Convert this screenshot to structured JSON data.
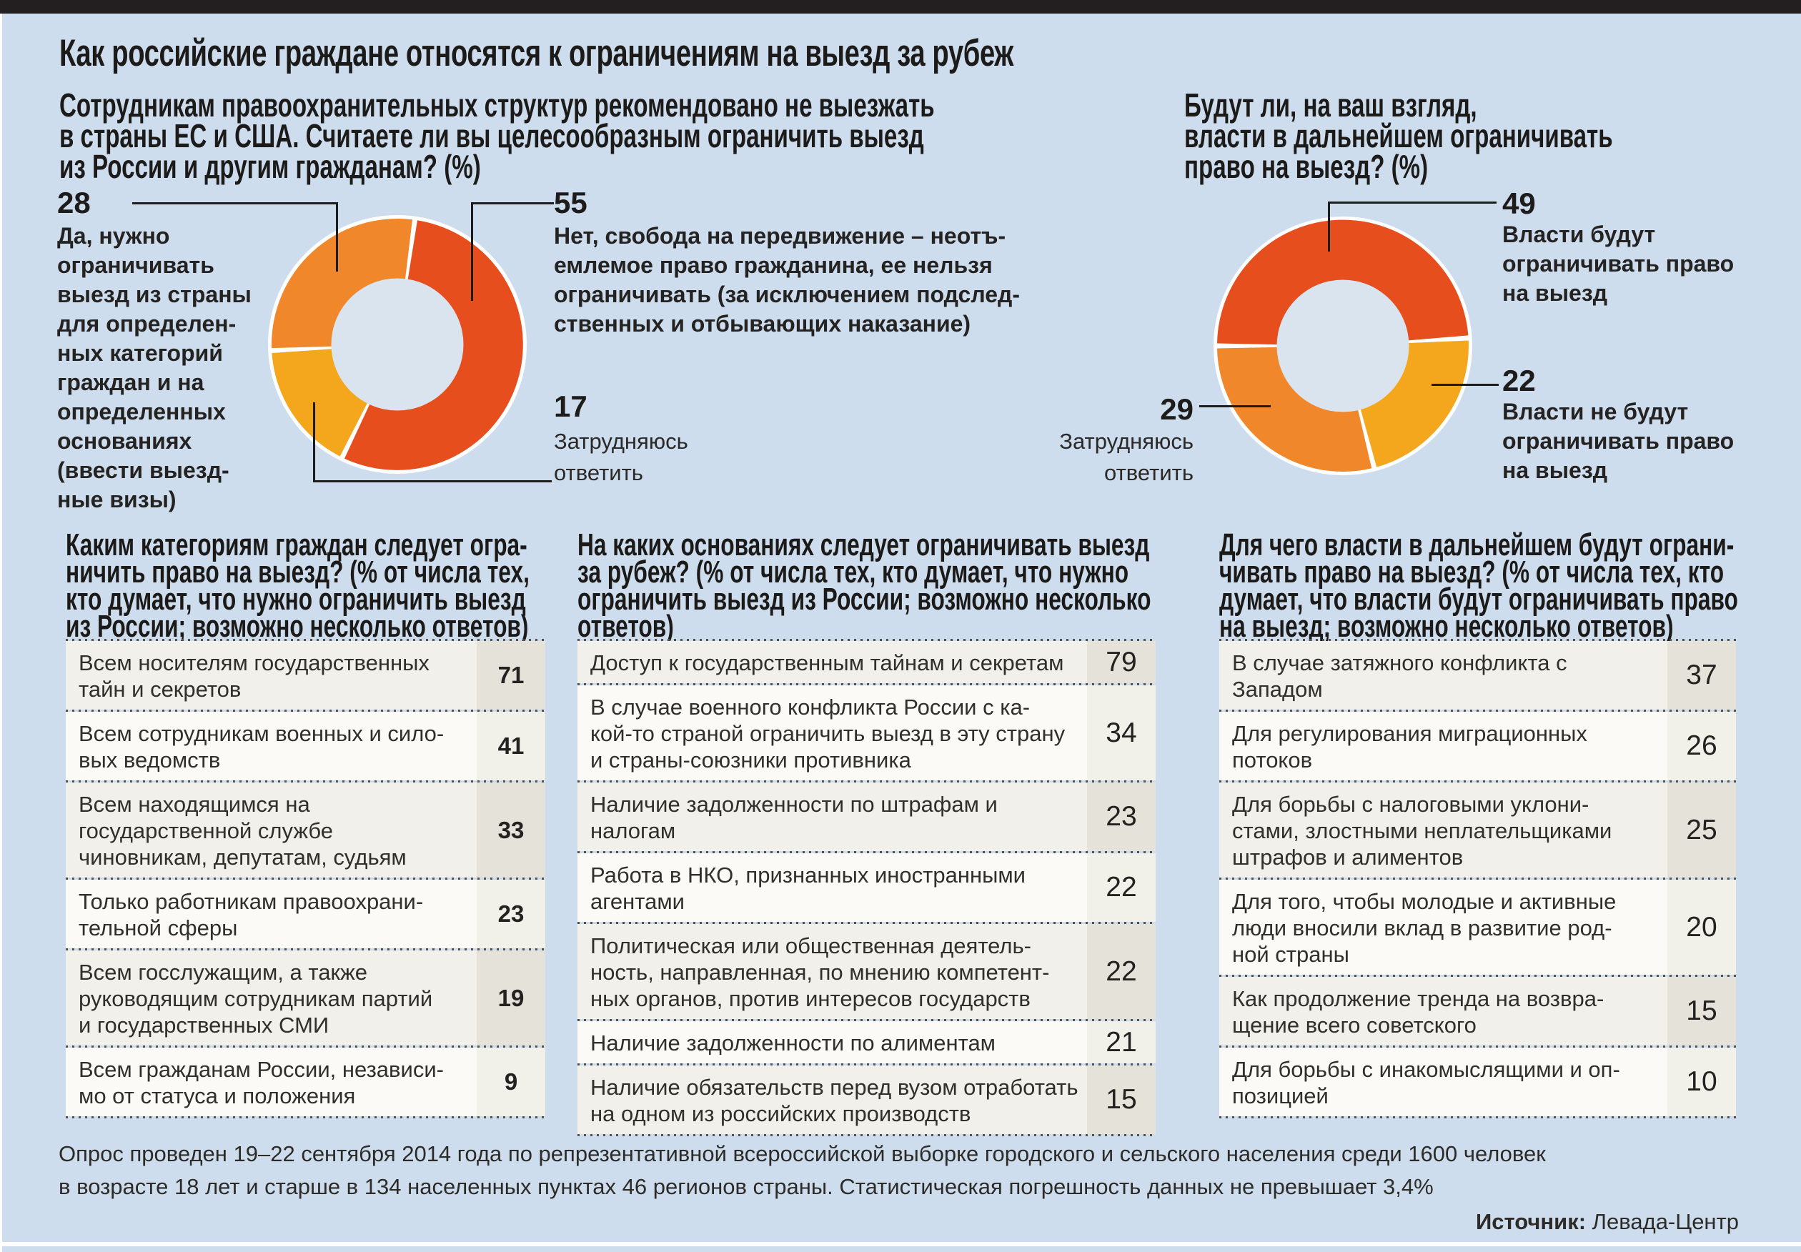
{
  "page": {
    "title": "Как российские граждане относятся к ограничениям на выезд за рубеж",
    "footer": "Опрос проведен 19–22 сентября 2014 года по репрезентативной всероссийской выборке городского и сельского населения среди 1600 человек\nв возрасте 18 лет и старше в 134 населенных пунктах 46 регионов страны. Статистическая погрешность данных не превышает 3,4%",
    "source_label": "Источник:",
    "source_value": " Левада-Центр"
  },
  "questions": {
    "left": "Сотрудникам правоохранительных структур рекомендовано не выезжать\nв страны ЕС и США. Считаете ли вы целесообразным ограничить выезд\nиз России и другим гражданам? (%)",
    "right": "Будут ли, на ваш взгляд,\nвласти в дальнейшем ограничивать\nправо на выезд? (%)"
  },
  "chart_data": [
    {
      "type": "pie",
      "subtype": "donut",
      "title": "Считаете ли вы целесообразным ограничить выезд из России и другим гражданам? (%)",
      "start_angle": 8,
      "segments": [
        {
          "label": "Нет, свобода на передвижение – неотъемлемое право гражданина, ее нельзя ограничивать (за исключением подследственных и отбывающих наказание)",
          "value": 55,
          "color": "#e74e1e"
        },
        {
          "label": "Затрудняюсь ответить",
          "value": 17,
          "color": "#f4a71d"
        },
        {
          "label": "Да, нужно ограничивать выезд из страны для определенных категорий граждан и на определенных основаниях (ввести выездные визы)",
          "value": 28,
          "color": "#f0872a"
        }
      ]
    },
    {
      "type": "pie",
      "subtype": "donut",
      "title": "Будут ли, на ваш взгляд, власти в дальнейшем ограничивать право на выезд? (%)",
      "start_angle": 270,
      "segments": [
        {
          "label": "Власти будут ограничивать право на выезд",
          "value": 49,
          "color": "#e74e1e"
        },
        {
          "label": "Власти не будут ограничивать право на выезд",
          "value": 22,
          "color": "#f4a71d"
        },
        {
          "label": "Затрудняюсь ответить",
          "value": 29,
          "color": "#f0872a"
        }
      ]
    }
  ],
  "callouts": {
    "c28": "Да, нужно\nограничивать\nвыезд из страны\nдля определен-\nных категорий\nграждан и на\nопределенных\nоснованиях\n(ввести выезд-\nные визы)",
    "c55": "Нет, свобода на передвижение – неотъ-\nемлемое право гражданина, ее нельзя\nограничивать (за исключением подслед-\nственных и отбывающих наказание)",
    "c17": "Затрудняюсь\nответить",
    "c49": "Власти будут\nограничивать право\nна выезд",
    "c22": "Власти не будут\nограничивать право\nна выезд",
    "c29": "Затрудняюсь\nответить"
  },
  "tables": [
    {
      "header": "Каким категориям граждан следует огра-\nничить право на выезд? (% от числа тех,\nкто думает, что нужно ограничить выезд\nиз России; возможно несколько ответов)",
      "rows": [
        {
          "text": "Всем носителям государственных\nтайн и секретов",
          "value": 71
        },
        {
          "text": "Всем сотрудникам военных и сило-\nвых ведомств",
          "value": 41
        },
        {
          "text": "Всем находящимся на\nгосударственной службе\nчиновникам, депутатам, судьям",
          "value": 33
        },
        {
          "text": "Только работникам правоохрани-\nтельной сферы",
          "value": 23
        },
        {
          "text": "Всем госслужащим, а также\nруководящим сотрудникам партий\nи государственных СМИ",
          "value": 19
        },
        {
          "text": "Всем гражданам России, независи-\nмо от статуса и положения",
          "value": 9
        }
      ]
    },
    {
      "header": "На каких основаниях следует ограничивать выезд\nза рубеж? (% от числа тех, кто думает, что нужно\nограничить выезд из России; возможно несколько\nответов)",
      "rows": [
        {
          "text": "Доступ к государственным тайнам и секретам",
          "value": 79
        },
        {
          "text": "В случае военного конфликта России с ка-\nкой-то страной ограничить выезд в эту страну\nи страны-союзники противника",
          "value": 34
        },
        {
          "text": "Наличие задолженности по штрафам и налогам",
          "value": 23
        },
        {
          "text": "Работа в НКО, признанных иностранными\nагентами",
          "value": 22
        },
        {
          "text": "Политическая или общественная деятель-\nность, направленная, по мнению компетент-\nных органов, против интересов государств",
          "value": 22
        },
        {
          "text": "Наличие задолженности по алиментам",
          "value": 21
        },
        {
          "text": "Наличие обязательств перед вузом отработать\nна одном из российских производств",
          "value": 15
        }
      ]
    },
    {
      "header": "Для чего власти в дальнейшем будут ограни-\nчивать право на выезд? (% от числа тех, кто\nдумает, что власти будут ограничивать право\nна выезд; возможно несколько ответов)",
      "rows": [
        {
          "text": "В случае затяжного конфликта с\nЗападом",
          "value": 37
        },
        {
          "text": "Для регулирования миграционных\nпотоков",
          "value": 26
        },
        {
          "text": "Для борьбы с налоговыми уклони-\nстами, злостными неплательщиками\nштрафов и алиментов",
          "value": 25
        },
        {
          "text": "Для того, чтобы молодые и активные\nлюди вносили вклад в развитие род-\nной страны",
          "value": 20
        },
        {
          "text": "Как продолжение тренда на возвра-\nщение всего советского",
          "value": 15
        },
        {
          "text": "Для борьбы с инакомыслящими и оп-\nпозицией",
          "value": 10
        }
      ]
    }
  ]
}
